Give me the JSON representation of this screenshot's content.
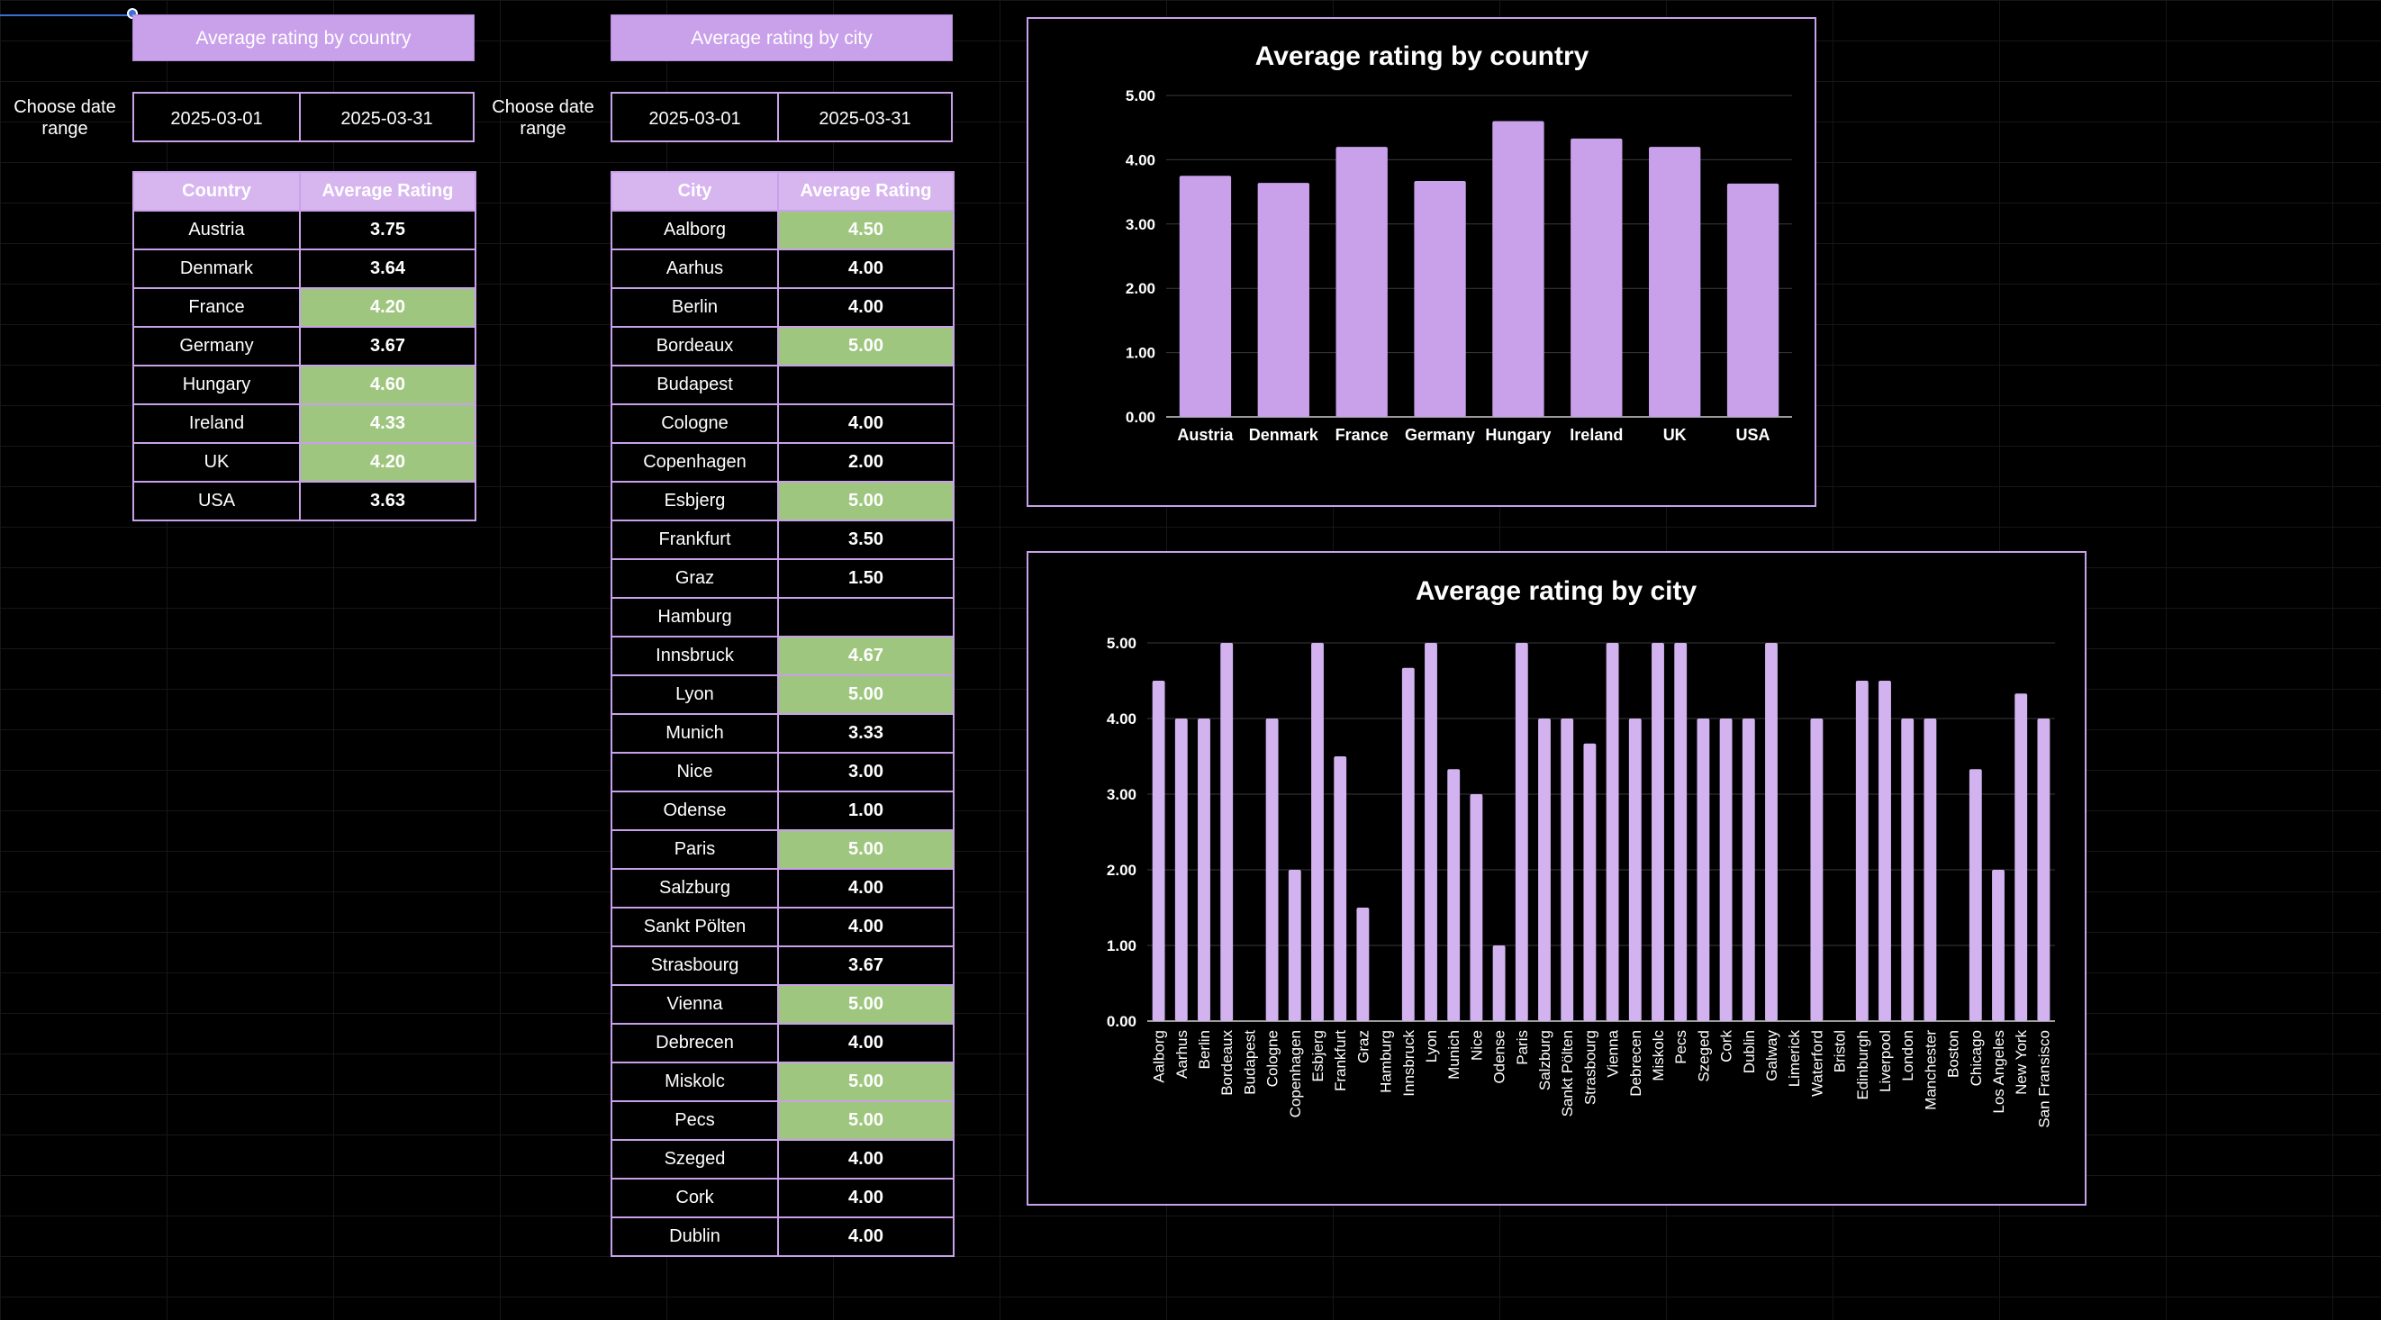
{
  "country_section": {
    "button_label": "Average rating by country",
    "range_label": "Choose date range",
    "start_date": "2025-03-01",
    "end_date": "2025-03-31",
    "table": {
      "headers": [
        "Country",
        "Average Rating"
      ],
      "rows": [
        {
          "name": "Austria",
          "value": "3.75",
          "highlight": false
        },
        {
          "name": "Denmark",
          "value": "3.64",
          "highlight": false
        },
        {
          "name": "France",
          "value": "4.20",
          "highlight": true
        },
        {
          "name": "Germany",
          "value": "3.67",
          "highlight": false
        },
        {
          "name": "Hungary",
          "value": "4.60",
          "highlight": true
        },
        {
          "name": "Ireland",
          "value": "4.33",
          "highlight": true
        },
        {
          "name": "UK",
          "value": "4.20",
          "highlight": true
        },
        {
          "name": "USA",
          "value": "3.63",
          "highlight": false
        }
      ]
    }
  },
  "city_section": {
    "button_label": "Average rating by city",
    "range_label": "Choose date range",
    "start_date": "2025-03-01",
    "end_date": "2025-03-31",
    "table": {
      "headers": [
        "City",
        "Average Rating"
      ],
      "rows": [
        {
          "name": "Aalborg",
          "value": "4.50",
          "highlight": true
        },
        {
          "name": "Aarhus",
          "value": "4.00",
          "highlight": false
        },
        {
          "name": "Berlin",
          "value": "4.00",
          "highlight": false
        },
        {
          "name": "Bordeaux",
          "value": "5.00",
          "highlight": true
        },
        {
          "name": "Budapest",
          "value": "",
          "highlight": false
        },
        {
          "name": "Cologne",
          "value": "4.00",
          "highlight": false
        },
        {
          "name": "Copenhagen",
          "value": "2.00",
          "highlight": false
        },
        {
          "name": "Esbjerg",
          "value": "5.00",
          "highlight": true
        },
        {
          "name": "Frankfurt",
          "value": "3.50",
          "highlight": false
        },
        {
          "name": "Graz",
          "value": "1.50",
          "highlight": false
        },
        {
          "name": "Hamburg",
          "value": "",
          "highlight": false
        },
        {
          "name": "Innsbruck",
          "value": "4.67",
          "highlight": true
        },
        {
          "name": "Lyon",
          "value": "5.00",
          "highlight": true
        },
        {
          "name": "Munich",
          "value": "3.33",
          "highlight": false
        },
        {
          "name": "Nice",
          "value": "3.00",
          "highlight": false
        },
        {
          "name": "Odense",
          "value": "1.00",
          "highlight": false
        },
        {
          "name": "Paris",
          "value": "5.00",
          "highlight": true
        },
        {
          "name": "Salzburg",
          "value": "4.00",
          "highlight": false
        },
        {
          "name": "Sankt Pölten",
          "value": "4.00",
          "highlight": false
        },
        {
          "name": "Strasbourg",
          "value": "3.67",
          "highlight": false
        },
        {
          "name": "Vienna",
          "value": "5.00",
          "highlight": true
        },
        {
          "name": "Debrecen",
          "value": "4.00",
          "highlight": false
        },
        {
          "name": "Miskolc",
          "value": "5.00",
          "highlight": true
        },
        {
          "name": "Pecs",
          "value": "5.00",
          "highlight": true
        },
        {
          "name": "Szeged",
          "value": "4.00",
          "highlight": false
        },
        {
          "name": "Cork",
          "value": "4.00",
          "highlight": false
        },
        {
          "name": "Dublin",
          "value": "4.00",
          "highlight": false
        }
      ]
    }
  },
  "colors": {
    "accent": "#c9a0ea",
    "header_fill": "#d7b6f0",
    "highlight": "#9fc67f",
    "bar_country": "#c9a0ea",
    "bar_city": "#d2b3ef"
  },
  "chart_data": [
    {
      "type": "bar",
      "title": "Average rating by country",
      "xlabel": "",
      "ylabel": "",
      "categories": [
        "Austria",
        "Denmark",
        "France",
        "Germany",
        "Hungary",
        "Ireland",
        "UK",
        "USA"
      ],
      "values": [
        3.75,
        3.64,
        4.2,
        3.67,
        4.6,
        4.33,
        4.2,
        3.63
      ],
      "ylim": [
        0,
        5
      ],
      "yticks": [
        "0.00",
        "1.00",
        "2.00",
        "3.00",
        "4.00",
        "5.00"
      ],
      "grid": true,
      "legend": "none"
    },
    {
      "type": "bar",
      "title": "Average rating by city",
      "xlabel": "",
      "ylabel": "",
      "categories": [
        "Aalborg",
        "Aarhus",
        "Berlin",
        "Bordeaux",
        "Budapest",
        "Cologne",
        "Copenhagen",
        "Esbjerg",
        "Frankfurt",
        "Graz",
        "Hamburg",
        "Innsbruck",
        "Lyon",
        "Munich",
        "Nice",
        "Odense",
        "Paris",
        "Salzburg",
        "Sankt Pölten",
        "Strasbourg",
        "Vienna",
        "Debrecen",
        "Miskolc",
        "Pecs",
        "Szeged",
        "Cork",
        "Dublin",
        "Galway",
        "Limerick",
        "Waterford",
        "Bristol",
        "Edinburgh",
        "Liverpool",
        "London",
        "Manchester",
        "Boston",
        "Chicago",
        "Los Angeles",
        "New York",
        "San Fransisco"
      ],
      "values": [
        4.5,
        4.0,
        4.0,
        5.0,
        null,
        4.0,
        2.0,
        5.0,
        3.5,
        1.5,
        null,
        4.67,
        5.0,
        3.33,
        3.0,
        1.0,
        5.0,
        4.0,
        4.0,
        3.67,
        5.0,
        4.0,
        5.0,
        5.0,
        4.0,
        4.0,
        4.0,
        5.0,
        null,
        4.0,
        null,
        4.5,
        4.5,
        4.0,
        4.0,
        null,
        3.33,
        2.0,
        4.33,
        4.0
      ],
      "ylim": [
        0,
        5
      ],
      "yticks": [
        "0.00",
        "1.00",
        "2.00",
        "3.00",
        "4.00",
        "5.00"
      ],
      "grid": true,
      "legend": "none"
    }
  ]
}
